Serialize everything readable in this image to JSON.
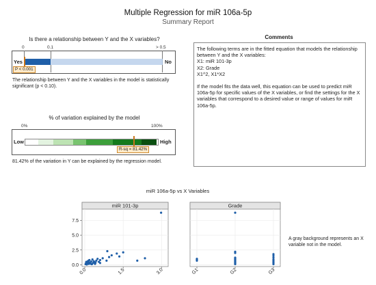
{
  "header": {
    "title": "Multiple Regression for miR 106a-5p",
    "subtitle": "Summary Report"
  },
  "relationship": {
    "question": "Is there a relationship between Y and the X variables?",
    "ticks": [
      "0",
      "0.1",
      "> 0.5"
    ],
    "yes_label": "Yes",
    "no_label": "No",
    "p_value_label": "P < 0.001",
    "p_value_fraction": 0.001,
    "conclusion": "The relationship between Y and the X variables in the model is statistically significant (p < 0.10).",
    "colors": {
      "significant": "#1f5fa8",
      "not_significant": "#c5d7ee"
    }
  },
  "variation": {
    "title": "% of variation explained by the model",
    "ticks": [
      "0%",
      "100%"
    ],
    "low_label": "Low",
    "high_label": "High",
    "rsq_label": "R-sq = 81.42%",
    "rsq_percent": 81.42,
    "conclusion": "81.42% of the variation in Y can be explained by the regression model.",
    "scale_colors": [
      "#ffffff",
      "#e3f3e0",
      "#bde3b3",
      "#79c46f",
      "#3d9f3b",
      "#157a1c",
      "#0a4f10"
    ]
  },
  "comments": {
    "heading": "Comments",
    "lines": [
      "The following terms are in the fitted equation that models the relationship between Y and the X variables:",
      "X1: miR 101-3p",
      "X2: Grade",
      "X1^2, X1*X2",
      "",
      "If the model fits the data well, this equation can be used to predict miR 106a-5p for specific values of the X variables, or find the settings for the X variables that correspond to a desired value or range of values for miR 106a-5p."
    ]
  },
  "chart_data": [
    {
      "type": "scatter",
      "title": "miR 106a-5p vs X Variables",
      "panel_title": "miR 101-3p",
      "xlim": [
        0,
        3.15
      ],
      "ylim": [
        -0.3,
        9.4
      ],
      "x_ticks": [
        "0.0",
        "1.5",
        "3.0"
      ],
      "x_tick_values": [
        0,
        1.5,
        3.0
      ],
      "y_ticks": [
        "0.0",
        "2.5",
        "5.0",
        "7.5"
      ],
      "y_tick_values": [
        0,
        2.5,
        5.0,
        7.5
      ],
      "point_color": "#1f5fa8",
      "points": [
        [
          0.03,
          0.1
        ],
        [
          0.05,
          0.3
        ],
        [
          0.06,
          0.5
        ],
        [
          0.08,
          0.05
        ],
        [
          0.1,
          0.2
        ],
        [
          0.12,
          0.6
        ],
        [
          0.14,
          0.35
        ],
        [
          0.16,
          0.15
        ],
        [
          0.18,
          0.8
        ],
        [
          0.2,
          0.4
        ],
        [
          0.22,
          0.25
        ],
        [
          0.25,
          0.55
        ],
        [
          0.28,
          0.1
        ],
        [
          0.3,
          0.9
        ],
        [
          0.32,
          0.3
        ],
        [
          0.35,
          0.6
        ],
        [
          0.38,
          0.45
        ],
        [
          0.4,
          0.15
        ],
        [
          0.45,
          0.7
        ],
        [
          0.5,
          1.0
        ],
        [
          0.55,
          0.5
        ],
        [
          0.6,
          0.3
        ],
        [
          0.7,
          1.1
        ],
        [
          0.85,
          0.7
        ],
        [
          0.95,
          1.3
        ],
        [
          1.05,
          1.6
        ],
        [
          1.25,
          1.9
        ],
        [
          1.35,
          1.4
        ],
        [
          1.5,
          2.1
        ],
        [
          2.05,
          0.7
        ],
        [
          2.35,
          1.1
        ],
        [
          2.98,
          8.8
        ],
        [
          0.08,
          0.45
        ],
        [
          0.15,
          0.7
        ],
        [
          0.42,
          0.35
        ],
        [
          0.88,
          2.3
        ],
        [
          0.26,
          0.1
        ],
        [
          0.6,
          0.8
        ]
      ]
    },
    {
      "type": "scatter",
      "title": "miR 106a-5p vs X Variables",
      "panel_title": "Grade",
      "categories": [
        "G1",
        "G2",
        "G3"
      ],
      "ylim": [
        -0.3,
        9.4
      ],
      "point_color": "#1f5fa8",
      "values": [
        [
          0.7,
          0.9,
          1.0
        ],
        [
          0.1,
          0.2,
          0.3,
          0.4,
          0.5,
          0.6,
          0.7,
          0.8,
          0.9,
          1.0,
          1.1,
          1.2,
          2.0,
          2.2,
          8.8
        ],
        [
          0.1,
          0.3,
          0.5,
          0.7,
          0.9,
          1.2,
          1.5,
          1.8
        ]
      ]
    }
  ],
  "note": "A gray background represents an X variable not in the model."
}
